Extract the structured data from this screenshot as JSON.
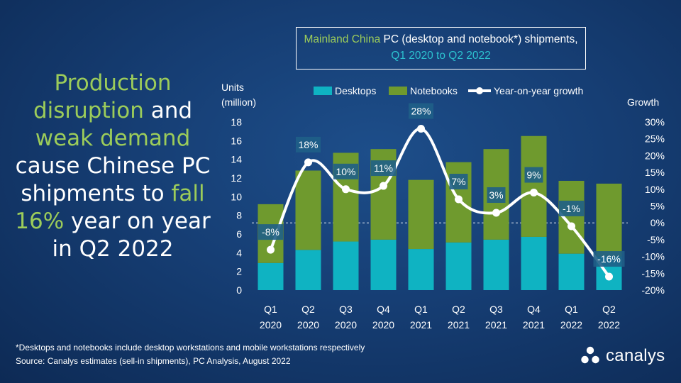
{
  "headline": {
    "part1": "Production",
    "part2": "disruption",
    "part3": " and",
    "part4": "weak demand",
    "part5": "cause Chinese PC shipments to ",
    "part6": "fall",
    "part7": "16%",
    "part8": " year on year in Q2 2022"
  },
  "title": {
    "part1": "Mainland China",
    "part2": " PC (desktop and notebook*) shipments, ",
    "part3": "Q1 2020 to Q2 2022"
  },
  "colors": {
    "desktops": "#0fb3c2",
    "notebooks": "#6f9a2e",
    "growth_line": "#ffffff",
    "highlight_green": "#9ccc5a",
    "label_bg": "#1f5f87"
  },
  "chart_data": {
    "type": "bar",
    "stacked": true,
    "categories": [
      [
        "Q1",
        "2020"
      ],
      [
        "Q2",
        "2020"
      ],
      [
        "Q3",
        "2020"
      ],
      [
        "Q4",
        "2020"
      ],
      [
        "Q1",
        "2021"
      ],
      [
        "Q2",
        "2021"
      ],
      [
        "Q3",
        "2021"
      ],
      [
        "Q4",
        "2021"
      ],
      [
        "Q1",
        "2022"
      ],
      [
        "Q2",
        "2022"
      ]
    ],
    "series": [
      {
        "name": "Desktops",
        "values": [
          2.9,
          4.3,
          5.2,
          5.4,
          4.4,
          5.1,
          5.4,
          5.7,
          3.9,
          3.6
        ]
      },
      {
        "name": "Notebooks",
        "values": [
          6.3,
          8.5,
          9.5,
          9.7,
          7.4,
          8.6,
          9.7,
          10.8,
          7.8,
          7.8
        ]
      }
    ],
    "growth": {
      "name": "Year-on-year growth",
      "values": [
        -8,
        18,
        10,
        11,
        28,
        7,
        3,
        9,
        -1,
        -16
      ],
      "labels": [
        "-8%",
        "18%",
        "10%",
        "11%",
        "28%",
        "7%",
        "3%",
        "9%",
        "-1%",
        "-16%"
      ]
    },
    "ylabel": "Units\n(million)",
    "ylabel_line1": "Units",
    "ylabel_line2": "(million)",
    "ylim": [
      0,
      18
    ],
    "yticks": [
      "0",
      "2",
      "4",
      "6",
      "8",
      "10",
      "12",
      "14",
      "16",
      "18"
    ],
    "y2label": "Growth",
    "y2lim": [
      -20,
      30
    ],
    "y2ticks": [
      "-20%",
      "-15%",
      "-10%",
      "-5%",
      "0%",
      "5%",
      "10%",
      "15%",
      "20%",
      "25%",
      "30%"
    ],
    "legend": [
      "Desktops",
      "Notebooks",
      "Year-on-year growth"
    ],
    "legend_position": "top"
  },
  "footnote": {
    "line1": "*Desktops and notebooks include desktop workstations and mobile workstations respectively",
    "line2": "Source: Canalys estimates (sell-in shipments), PC Analysis, August 2022"
  },
  "brand": "canalys"
}
